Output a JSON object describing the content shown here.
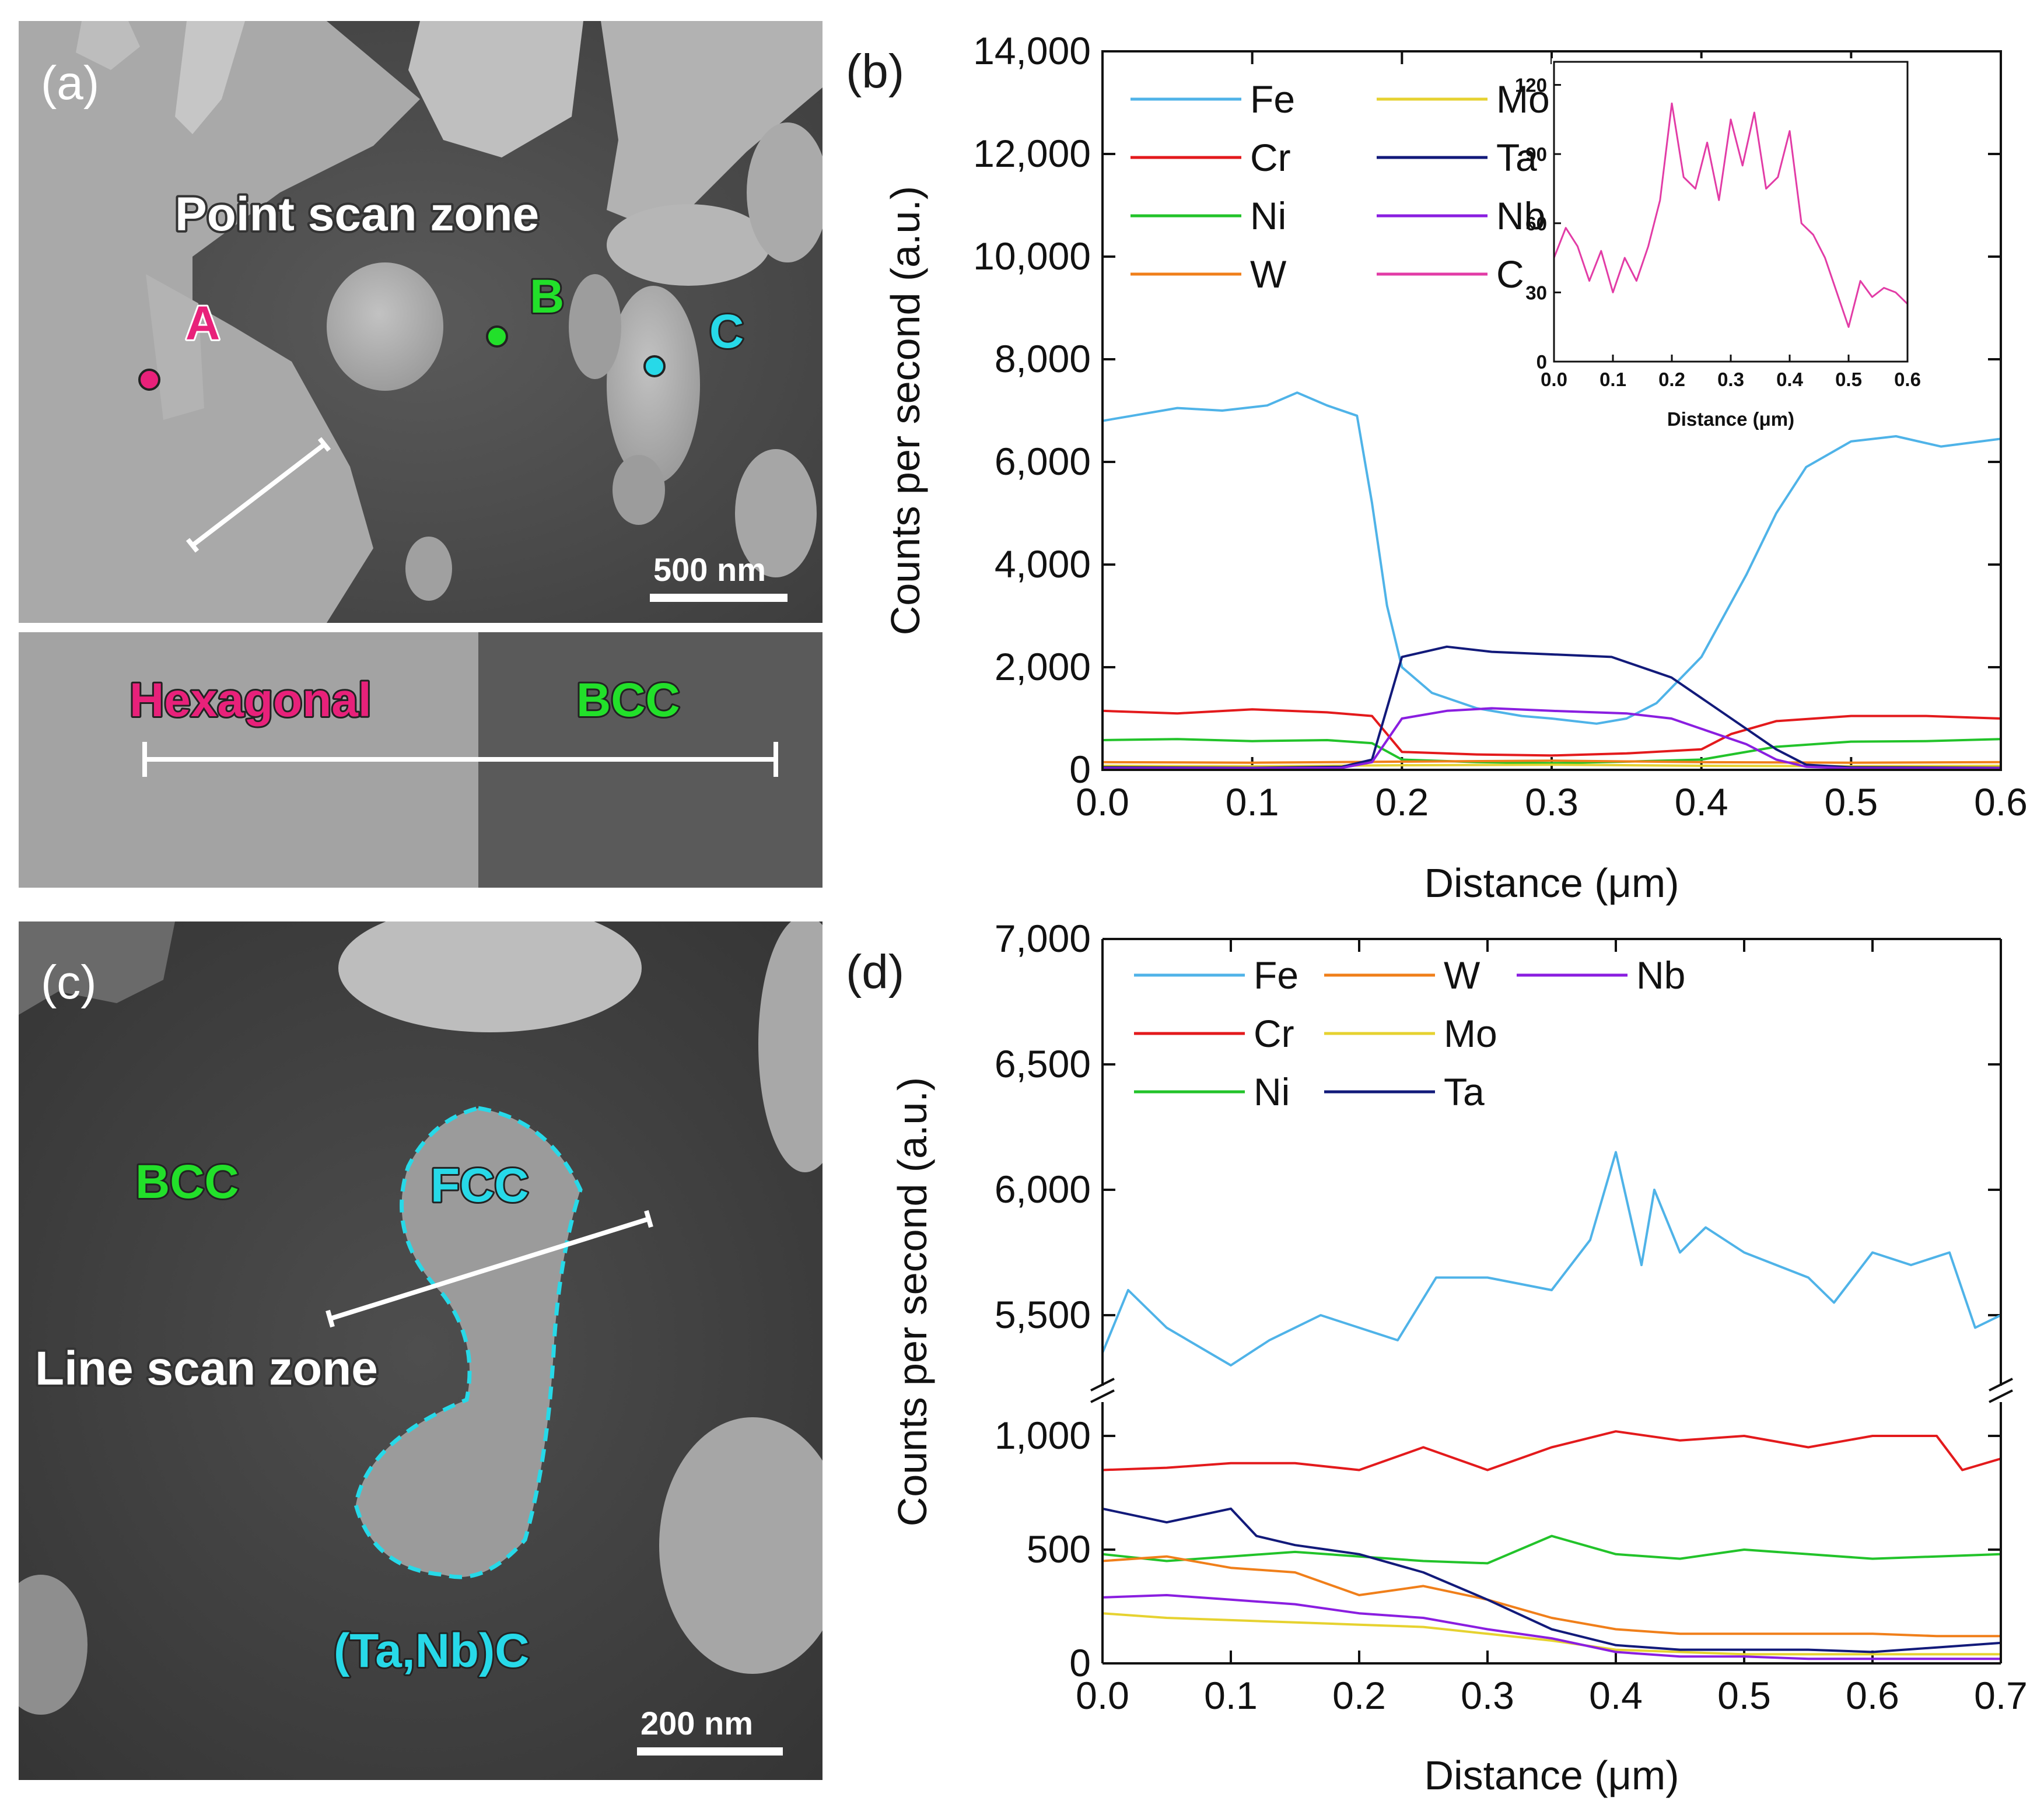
{
  "panels": {
    "a": {
      "letter": "(a)",
      "title": "Point scan zone",
      "points": [
        {
          "label": "A",
          "color": "#e8217a"
        },
        {
          "label": "B",
          "color": "#22e02a"
        },
        {
          "label": "C",
          "color": "#27d9e8"
        }
      ],
      "scale_bar": "500 nm",
      "sub_labels": {
        "left": "Hexagonal",
        "right": "BCC"
      },
      "colors": {
        "hexagonal": "#e8217a",
        "bcc": "#22e02a"
      }
    },
    "c": {
      "letter": "(c)",
      "bcc_label": "BCC",
      "fcc_label": "FCC",
      "line_scan_label": "Line scan zone",
      "carbide_label": "(Ta,Nb)C",
      "scale_bar": "200 nm",
      "colors": {
        "bcc": "#22e02a",
        "fcc": "#27d9e8",
        "carbide": "#27d9e8"
      }
    },
    "b": {
      "letter": "(b)"
    },
    "d": {
      "letter": "(d)"
    }
  },
  "chart_data": [
    {
      "id": "b",
      "type": "line",
      "xlabel": "Distance (μm)",
      "ylabel": "Counts per second (a.u.)",
      "xlim": [
        0,
        0.6
      ],
      "ylim": [
        0,
        14000
      ],
      "xticks": [
        "0.0",
        "0.1",
        "0.2",
        "0.3",
        "0.4",
        "0.5",
        "0.6"
      ],
      "yticks": [
        "0",
        "2,000",
        "4,000",
        "6,000",
        "8,000",
        "10,000",
        "12,000",
        "14,000"
      ],
      "legend": [
        {
          "name": "Fe",
          "color": "#4fb3e8"
        },
        {
          "name": "Cr",
          "color": "#e31a1c"
        },
        {
          "name": "Ni",
          "color": "#22c32a"
        },
        {
          "name": "W",
          "color": "#f07f1a"
        },
        {
          "name": "Mo",
          "color": "#e6d230"
        },
        {
          "name": "Ta",
          "color": "#121a7a"
        },
        {
          "name": "Nb",
          "color": "#8a1ee0"
        },
        {
          "name": "C",
          "color": "#e23ca6"
        }
      ],
      "series": [
        {
          "name": "Fe",
          "color": "#4fb3e8",
          "x": [
            0,
            0.02,
            0.05,
            0.08,
            0.11,
            0.13,
            0.15,
            0.17,
            0.18,
            0.19,
            0.2,
            0.22,
            0.25,
            0.28,
            0.3,
            0.33,
            0.35,
            0.37,
            0.4,
            0.43,
            0.45,
            0.47,
            0.5,
            0.53,
            0.56,
            0.6
          ],
          "values": [
            6800,
            6900,
            7050,
            7000,
            7100,
            7350,
            7100,
            6900,
            5200,
            3200,
            2000,
            1500,
            1200,
            1050,
            1000,
            900,
            1000,
            1300,
            2200,
            3800,
            5000,
            5900,
            6400,
            6500,
            6300,
            6450
          ]
        },
        {
          "name": "Cr",
          "color": "#e31a1c",
          "x": [
            0,
            0.05,
            0.1,
            0.15,
            0.18,
            0.2,
            0.25,
            0.3,
            0.35,
            0.4,
            0.42,
            0.45,
            0.5,
            0.55,
            0.6
          ],
          "values": [
            1150,
            1100,
            1180,
            1120,
            1050,
            350,
            300,
            280,
            320,
            400,
            700,
            950,
            1050,
            1050,
            1000
          ]
        },
        {
          "name": "Ni",
          "color": "#22c32a",
          "x": [
            0,
            0.05,
            0.1,
            0.15,
            0.18,
            0.2,
            0.25,
            0.3,
            0.35,
            0.4,
            0.45,
            0.5,
            0.55,
            0.6
          ],
          "values": [
            580,
            600,
            560,
            580,
            520,
            200,
            150,
            130,
            160,
            200,
            450,
            550,
            560,
            600
          ]
        },
        {
          "name": "W",
          "color": "#f07f1a",
          "x": [
            0,
            0.1,
            0.2,
            0.3,
            0.4,
            0.5,
            0.6
          ],
          "values": [
            150,
            140,
            160,
            180,
            150,
            140,
            150
          ]
        },
        {
          "name": "Mo",
          "color": "#e6d230",
          "x": [
            0,
            0.1,
            0.2,
            0.3,
            0.4,
            0.5,
            0.6
          ],
          "values": [
            80,
            70,
            90,
            100,
            80,
            70,
            80
          ]
        },
        {
          "name": "Ta",
          "color": "#121a7a",
          "x": [
            0,
            0.1,
            0.16,
            0.18,
            0.2,
            0.23,
            0.26,
            0.3,
            0.34,
            0.37,
            0.38,
            0.4,
            0.43,
            0.45,
            0.47,
            0.5,
            0.6
          ],
          "values": [
            50,
            40,
            60,
            200,
            2200,
            2400,
            2300,
            2250,
            2200,
            1900,
            1800,
            1400,
            800,
            400,
            100,
            50,
            40
          ]
        },
        {
          "name": "Nb",
          "color": "#8a1ee0",
          "x": [
            0,
            0.1,
            0.16,
            0.18,
            0.2,
            0.23,
            0.26,
            0.3,
            0.35,
            0.38,
            0.4,
            0.43,
            0.45,
            0.47,
            0.5,
            0.6
          ],
          "values": [
            30,
            30,
            40,
            150,
            1000,
            1150,
            1200,
            1150,
            1100,
            1000,
            800,
            500,
            200,
            60,
            30,
            30
          ]
        }
      ],
      "inset": {
        "xlabel": "Distance (μm)",
        "xlim": [
          0,
          0.6
        ],
        "ylim": [
          0,
          130
        ],
        "xticks": [
          "0.0",
          "0.1",
          "0.2",
          "0.3",
          "0.4",
          "0.5",
          "0.6"
        ],
        "yticks": [
          "0",
          "30",
          "60",
          "90",
          "120"
        ],
        "series": [
          {
            "name": "C",
            "color": "#e23ca6",
            "x": [
              0,
              0.02,
              0.04,
              0.06,
              0.08,
              0.1,
              0.12,
              0.14,
              0.16,
              0.18,
              0.2,
              0.22,
              0.24,
              0.26,
              0.28,
              0.3,
              0.32,
              0.34,
              0.36,
              0.38,
              0.4,
              0.42,
              0.44,
              0.46,
              0.48,
              0.5,
              0.52,
              0.54,
              0.56,
              0.58,
              0.6
            ],
            "values": [
              45,
              58,
              50,
              35,
              48,
              30,
              45,
              35,
              50,
              70,
              112,
              80,
              75,
              95,
              70,
              105,
              85,
              108,
              75,
              80,
              100,
              60,
              55,
              45,
              30,
              15,
              35,
              28,
              32,
              30,
              25
            ]
          }
        ]
      }
    },
    {
      "id": "d",
      "type": "line",
      "xlabel": "Distance (μm)",
      "ylabel": "Counts per second (a.u.)",
      "xlim": [
        0,
        0.7
      ],
      "ylim_lower": [
        0,
        1200
      ],
      "ylim_upper": [
        5200,
        7000
      ],
      "xticks": [
        "0.0",
        "0.1",
        "0.2",
        "0.3",
        "0.4",
        "0.5",
        "0.6",
        "0.7"
      ],
      "yticks_lower": [
        "0",
        "500",
        "1,000"
      ],
      "yticks_upper": [
        "5,500",
        "6,000",
        "6,500",
        "7,000"
      ],
      "legend": [
        {
          "name": "Fe",
          "color": "#4fb3e8"
        },
        {
          "name": "Cr",
          "color": "#e31a1c"
        },
        {
          "name": "Ni",
          "color": "#22c32a"
        },
        {
          "name": "W",
          "color": "#f07f1a"
        },
        {
          "name": "Mo",
          "color": "#e6d230"
        },
        {
          "name": "Ta",
          "color": "#121a7a"
        },
        {
          "name": "Nb",
          "color": "#8a1ee0"
        }
      ],
      "series": [
        {
          "name": "Fe",
          "color": "#4fb3e8",
          "x": [
            0,
            0.02,
            0.05,
            0.1,
            0.13,
            0.17,
            0.2,
            0.23,
            0.26,
            0.3,
            0.35,
            0.38,
            0.4,
            0.42,
            0.43,
            0.45,
            0.47,
            0.5,
            0.55,
            0.57,
            0.6,
            0.63,
            0.66,
            0.68,
            0.7
          ],
          "values": [
            5350,
            5600,
            5450,
            5300,
            5400,
            5500,
            5450,
            5400,
            5650,
            5650,
            5600,
            5800,
            6150,
            5700,
            6000,
            5750,
            5850,
            5750,
            5650,
            5550,
            5750,
            5700,
            5750,
            5450,
            5500
          ]
        },
        {
          "name": "Cr",
          "color": "#e31a1c",
          "x": [
            0,
            0.05,
            0.1,
            0.15,
            0.2,
            0.25,
            0.3,
            0.35,
            0.4,
            0.45,
            0.5,
            0.55,
            0.6,
            0.65,
            0.67,
            0.7
          ],
          "values": [
            850,
            860,
            880,
            880,
            850,
            950,
            850,
            950,
            1020,
            980,
            1000,
            950,
            1000,
            1000,
            850,
            900
          ]
        },
        {
          "name": "Ni",
          "color": "#22c32a",
          "x": [
            0,
            0.05,
            0.1,
            0.15,
            0.2,
            0.25,
            0.3,
            0.35,
            0.4,
            0.45,
            0.5,
            0.55,
            0.6,
            0.65,
            0.7
          ],
          "values": [
            480,
            450,
            470,
            490,
            470,
            450,
            440,
            560,
            480,
            460,
            500,
            480,
            460,
            470,
            480
          ]
        },
        {
          "name": "W",
          "color": "#f07f1a",
          "x": [
            0,
            0.05,
            0.1,
            0.15,
            0.2,
            0.25,
            0.3,
            0.35,
            0.4,
            0.45,
            0.5,
            0.55,
            0.6,
            0.65,
            0.7
          ],
          "values": [
            450,
            470,
            420,
            400,
            300,
            340,
            280,
            200,
            150,
            130,
            130,
            130,
            130,
            120,
            120
          ]
        },
        {
          "name": "Mo",
          "color": "#e6d230",
          "x": [
            0,
            0.05,
            0.1,
            0.15,
            0.2,
            0.25,
            0.3,
            0.35,
            0.4,
            0.45,
            0.5,
            0.55,
            0.6,
            0.65,
            0.7
          ],
          "values": [
            220,
            200,
            190,
            180,
            170,
            160,
            130,
            100,
            60,
            50,
            40,
            40,
            40,
            40,
            40
          ]
        },
        {
          "name": "Ta",
          "color": "#121a7a",
          "x": [
            0,
            0.05,
            0.1,
            0.12,
            0.15,
            0.2,
            0.25,
            0.3,
            0.35,
            0.4,
            0.45,
            0.5,
            0.55,
            0.6,
            0.65,
            0.7
          ],
          "values": [
            680,
            620,
            680,
            560,
            520,
            480,
            400,
            280,
            150,
            80,
            60,
            60,
            60,
            50,
            70,
            90
          ]
        },
        {
          "name": "Nb",
          "color": "#8a1ee0",
          "x": [
            0,
            0.05,
            0.1,
            0.15,
            0.2,
            0.25,
            0.3,
            0.35,
            0.4,
            0.45,
            0.5,
            0.55,
            0.6,
            0.65,
            0.7
          ],
          "values": [
            290,
            300,
            280,
            260,
            220,
            200,
            150,
            110,
            50,
            30,
            30,
            20,
            20,
            20,
            20
          ]
        }
      ]
    }
  ]
}
